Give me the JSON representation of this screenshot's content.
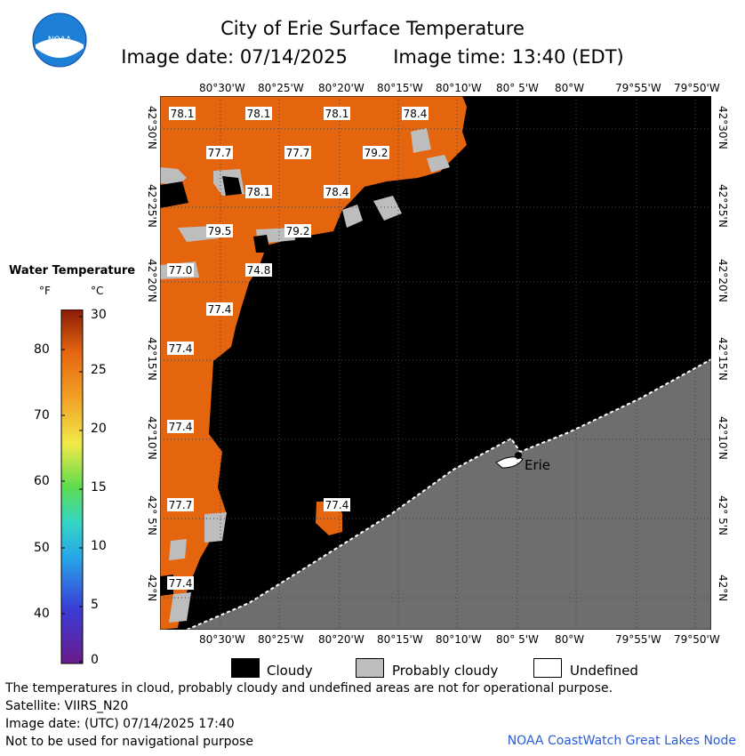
{
  "header": {
    "title": "City of Erie Surface Temperature",
    "image_date_label": "Image date: 07/14/2025",
    "image_time_label": "Image time: 13:40 (EDT)"
  },
  "logo": {
    "text": "NOAA"
  },
  "map": {
    "top_lon_labels": [
      "80°30'W",
      "80°25'W",
      "80°20'W",
      "80°15'W",
      "80°10'W",
      "80° 5'W",
      "80°W",
      "79°55'W",
      "79°50'W"
    ],
    "bottom_lon_labels": [
      "80°30'W",
      "80°25'W",
      "80°20'W",
      "80°15'W",
      "80°10'W",
      "80° 5'W",
      "80°W",
      "79°55'W",
      "79°50'W"
    ],
    "left_lat_labels": [
      "42°30'N",
      "42°25'N",
      "42°20'N",
      "42°15'N",
      "42°10'N",
      "42° 5'N",
      "42°N"
    ],
    "right_lat_labels": [
      "42°30'N",
      "42°25'N",
      "42°20'N",
      "42°15'N",
      "42°10'N",
      "42° 5'N",
      "42°N"
    ],
    "city_label": "Erie",
    "temperature_labels": [
      "78.1",
      "78.1",
      "78.1",
      "78.4",
      "77.7",
      "77.7",
      "79.2",
      "78.1",
      "78.4",
      "79.5",
      "79.2",
      "77.0",
      "74.8",
      "77.4",
      "77.4",
      "77.4",
      "77.7",
      "77.4",
      "77.4"
    ],
    "colors": {
      "water_warm": "#e5650f",
      "cloud": "#000000",
      "probably_cloudy": "#bdbdbd",
      "land": "#6e6e6e",
      "undefined": "#ffffff"
    }
  },
  "legend": {
    "title": "Water Temperature",
    "unit_f": "°F",
    "unit_c": "°C",
    "f_ticks": [
      "80",
      "70",
      "60",
      "50",
      "40"
    ],
    "c_ticks": [
      "30",
      "25",
      "20",
      "15",
      "10",
      "5",
      "0"
    ]
  },
  "key": {
    "cloudy": "Cloudy",
    "probably_cloudy": "Probably cloudy",
    "undefined": "Undefined"
  },
  "notes": {
    "line1": "The temperatures in cloud, probably cloudy and undefined areas are not for operational purpose.",
    "line2": "Satellite: VIIRS_N20",
    "line3": "Image date: (UTC) 07/14/2025  17:40",
    "line4": "Not to be used for navigational purpose",
    "credit": "NOAA CoastWatch Great Lakes Node"
  }
}
